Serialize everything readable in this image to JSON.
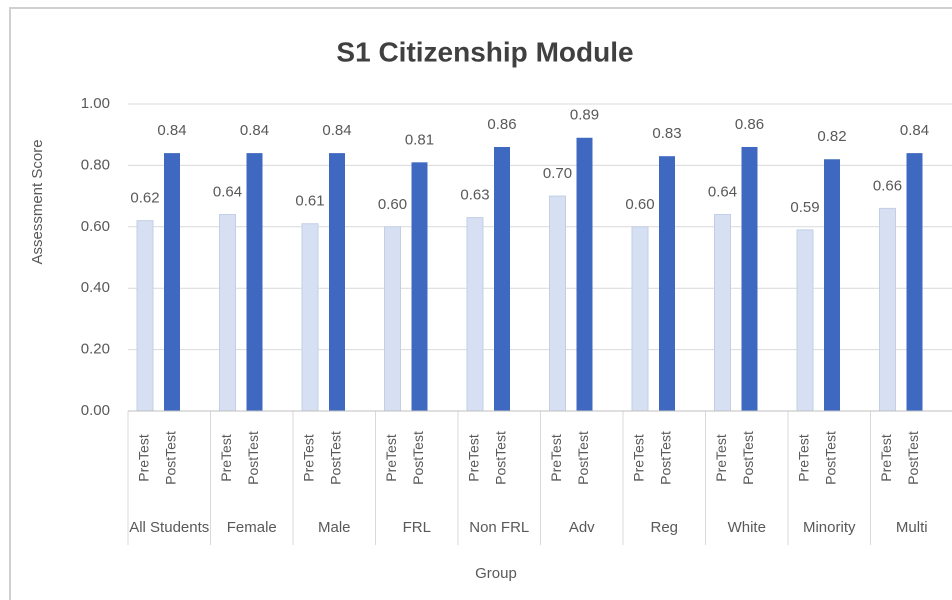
{
  "chart_data": {
    "type": "bar",
    "title": "S1 Citizenship Module",
    "y_label": "Assessment Score",
    "x_label": "Group",
    "categories": [
      "All Students",
      "Female",
      "Male",
      "FRL",
      "Non FRL",
      "Adv",
      "Reg",
      "White",
      "Minority",
      "Multi"
    ],
    "series": [
      {
        "name": "PreTest",
        "color": "#d6e0f2",
        "values": [
          0.62,
          0.64,
          0.61,
          0.6,
          0.63,
          0.7,
          0.6,
          0.64,
          0.59,
          0.66
        ],
        "value_labels": [
          "0.62",
          "0.64",
          "0.61",
          "0.60",
          "0.63",
          "0.70",
          "0.60",
          "0.64",
          "0.59",
          "0.66"
        ]
      },
      {
        "name": "PostTest",
        "color": "#3f69c0",
        "values": [
          0.84,
          0.84,
          0.84,
          0.81,
          0.86,
          0.89,
          0.83,
          0.86,
          0.82,
          0.84
        ],
        "value_labels": [
          "0.84",
          "0.84",
          "0.84",
          "0.81",
          "0.86",
          "0.89",
          "0.83",
          "0.86",
          "0.82",
          "0.84"
        ]
      }
    ],
    "ylim": [
      0,
      1
    ],
    "yticks": [
      {
        "value": 0,
        "label": "0.00"
      },
      {
        "value": 0.2,
        "label": "0.20"
      },
      {
        "value": 0.4,
        "label": "0.40"
      },
      {
        "value": 0.6,
        "label": "0.60"
      },
      {
        "value": 0.8,
        "label": "0.80"
      },
      {
        "value": 1,
        "label": "1.00"
      }
    ],
    "grid": true
  }
}
